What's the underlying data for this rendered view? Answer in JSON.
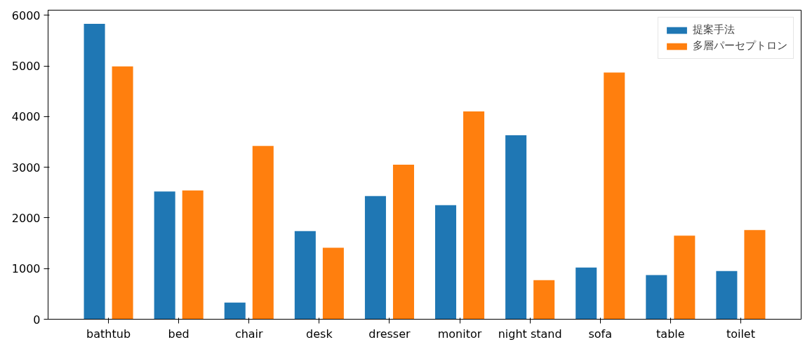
{
  "chart_data": {
    "type": "bar",
    "categories": [
      "bathtub",
      "bed",
      "chair",
      "desk",
      "dresser",
      "monitor",
      "night stand",
      "sofa",
      "table",
      "toilet"
    ],
    "series": [
      {
        "name": "提案手法",
        "color": "#1f77b4",
        "values": [
          5830,
          2520,
          330,
          1740,
          2430,
          2250,
          3630,
          1020,
          870,
          950
        ]
      },
      {
        "name": "多層パーセプトロン",
        "color": "#ff7f0e",
        "values": [
          4990,
          2540,
          3420,
          1410,
          3050,
          4100,
          770,
          4870,
          1650,
          1760
        ]
      }
    ],
    "ylim": [
      0,
      6100
    ],
    "yticks": [
      0,
      1000,
      2000,
      3000,
      4000,
      5000,
      6000
    ],
    "grid": false,
    "legend": "top right"
  }
}
